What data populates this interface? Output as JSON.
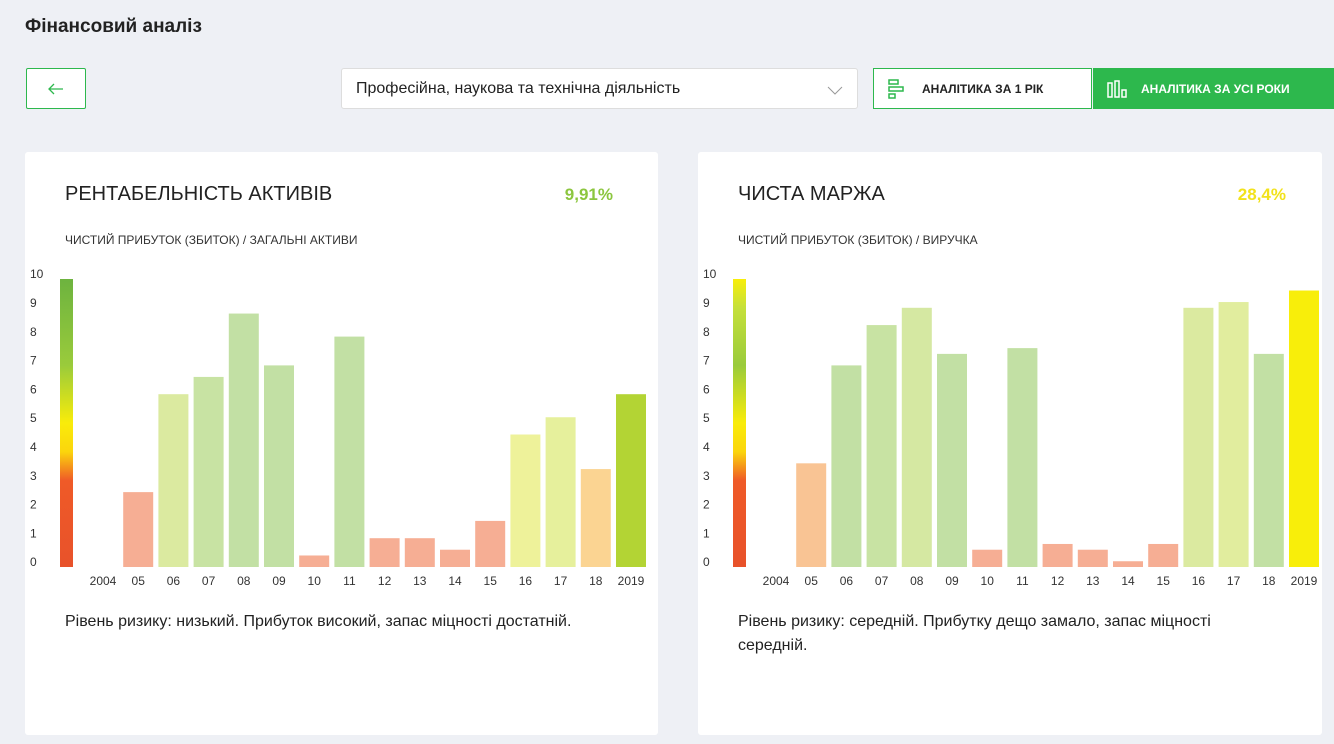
{
  "header": {
    "title": "Фінансовий аналіз"
  },
  "toolbar": {
    "select": "Професійна, наукова та технічна діяльність",
    "buttons": [
      "АНАЛІТИКА ЗА 1 РІК",
      "АНАЛІТИКА ЗА УСІ РОКИ"
    ]
  },
  "chart_data": [
    {
      "type": "bar",
      "title": "РЕНТАБЕЛЬНІСТЬ АКТИВІВ",
      "value_text": "9,91%",
      "value_color": "#8cc63f",
      "subtitle": "ЧИСТИЙ ПРИБУТОК (ЗБИТОК) / ЗАГАЛЬНІ АКТИВИ",
      "categories": [
        "2004",
        "05",
        "06",
        "07",
        "08",
        "09",
        "10",
        "11",
        "12",
        "13",
        "14",
        "15",
        "16",
        "17",
        "18",
        "2019"
      ],
      "values": [
        null,
        2.6,
        6.0,
        6.6,
        8.8,
        7.0,
        0.4,
        8.0,
        1.0,
        1.0,
        0.6,
        1.6,
        4.6,
        5.2,
        3.4,
        6.0
      ],
      "colors": [
        "#f6ae94",
        "#f6ae94",
        "#dbeaa0",
        "#c8e3a3",
        "#c2e0a4",
        "#c2e0a4",
        "#f6ae94",
        "#c2e0a4",
        "#f6ae94",
        "#f6ae94",
        "#f6ae94",
        "#f6ae94",
        "#eef29a",
        "#e6f09c",
        "#fbd492",
        "#b3d434"
      ],
      "ylim": [
        0,
        10
      ],
      "yticks": [
        0,
        1,
        2,
        3,
        4,
        5,
        6,
        7,
        8,
        9,
        10
      ],
      "description": "Рівень ризику: низький. Прибуток високий, запас міцності достатній."
    },
    {
      "type": "bar",
      "title": "ЧИСТА МАРЖА",
      "value_text": "28,4%",
      "value_color": "#f2e21c",
      "subtitle": "ЧИСТИЙ ПРИБУТОК (ЗБИТОК) / ВИРУЧКА",
      "categories": [
        "2004",
        "05",
        "06",
        "07",
        "08",
        "09",
        "10",
        "11",
        "12",
        "13",
        "14",
        "15",
        "16",
        "17",
        "18",
        "2019"
      ],
      "values": [
        null,
        3.6,
        7.0,
        8.4,
        9.0,
        7.4,
        0.6,
        7.6,
        0.8,
        0.6,
        0.2,
        0.8,
        9.0,
        9.2,
        7.4,
        9.6
      ],
      "colors": [
        "#f9c494",
        "#f9c494",
        "#c2e0a4",
        "#c8e3a3",
        "#d5e8a2",
        "#c2e0a4",
        "#f6ae94",
        "#c2e0a4",
        "#f6ae94",
        "#f6ae94",
        "#f6ae94",
        "#f6ae94",
        "#dbeaa0",
        "#e1ed9e",
        "#c2e0a4",
        "#f8ee0a"
      ],
      "ylim": [
        0,
        10
      ],
      "yticks": [
        0,
        1,
        2,
        3,
        4,
        5,
        6,
        7,
        8,
        9,
        10
      ],
      "description": "Рівень ризику: середній. Прибутку дещо замало, запас міцності середній."
    }
  ]
}
